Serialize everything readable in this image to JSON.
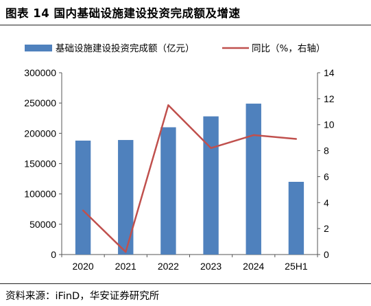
{
  "figure": {
    "title": "图表 14 国内基础设施建设投资完成额及增速",
    "source": "资料来源：iFinD，华安证券研究所"
  },
  "chart_data": {
    "type": "bar+line",
    "categories": [
      "2020",
      "2021",
      "2022",
      "2023",
      "2024",
      "25H1"
    ],
    "series": [
      {
        "name": "基础设施建设投资完成额（亿元）",
        "type": "bar",
        "axis": "left",
        "color": "#4f81bd",
        "values": [
          188000,
          189000,
          210000,
          228000,
          249000,
          120000
        ]
      },
      {
        "name": "同比（%，右轴）",
        "type": "line",
        "axis": "right",
        "color": "#c0504d",
        "values": [
          3.4,
          0.2,
          11.5,
          8.2,
          9.2,
          8.9
        ]
      }
    ],
    "y_left": {
      "min": 0,
      "max": 300000,
      "ticks": [
        0,
        50000,
        100000,
        150000,
        200000,
        250000,
        300000
      ]
    },
    "y_right": {
      "min": 0,
      "max": 14,
      "ticks": [
        0,
        2,
        4,
        6,
        8,
        10,
        12,
        14
      ]
    },
    "grid": false,
    "legend_position": "top"
  }
}
